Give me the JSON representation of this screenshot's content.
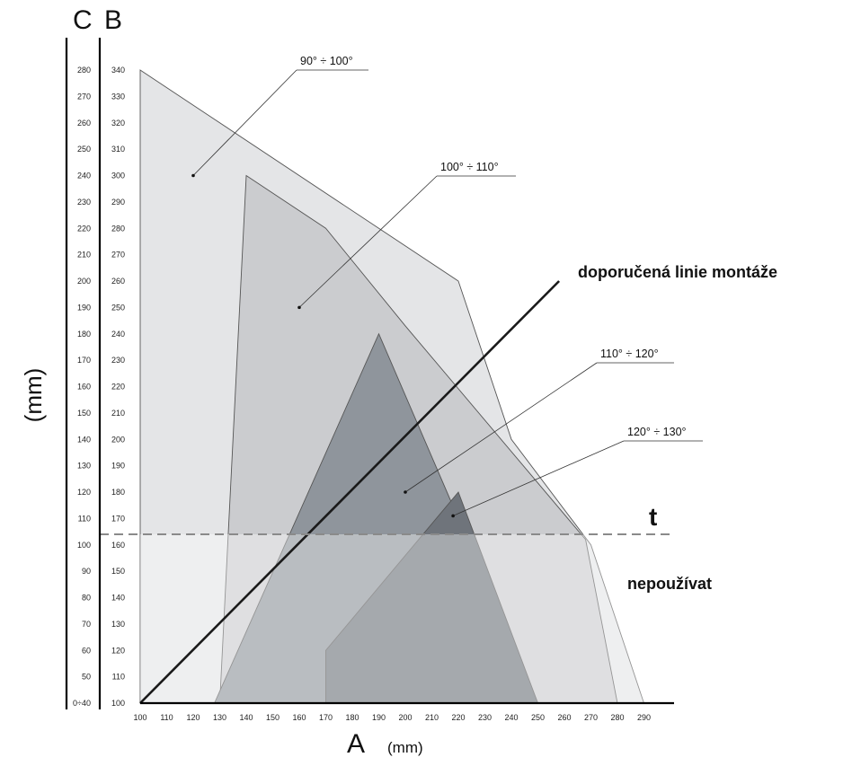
{
  "chart_data": {
    "type": "area",
    "x_axis": {
      "label": "A",
      "unit": "(mm)",
      "ticks": [
        100,
        110,
        120,
        130,
        140,
        150,
        160,
        170,
        180,
        190,
        200,
        210,
        220,
        230,
        240,
        250,
        260,
        270,
        280,
        290
      ],
      "range": [
        100,
        290
      ]
    },
    "y_axis_label": "(mm)",
    "y_axis_B": {
      "label": "B",
      "ticks": [
        "100",
        "110",
        "120",
        "130",
        "140",
        "150",
        "160",
        "170",
        "180",
        "190",
        "200",
        "210",
        "220",
        "230",
        "240",
        "250",
        "260",
        "270",
        "280",
        "290",
        "300",
        "310",
        "320",
        "330",
        "340"
      ],
      "range": [
        100,
        340
      ]
    },
    "y_axis_C": {
      "label": "C",
      "ticks": [
        "0÷40",
        "50",
        "60",
        "70",
        "80",
        "90",
        "100",
        "110",
        "120",
        "130",
        "140",
        "150",
        "160",
        "170",
        "180",
        "190",
        "200",
        "210",
        "220",
        "230",
        "240",
        "250",
        "260",
        "270",
        "280"
      ]
    },
    "series": [
      {
        "name": "90° ÷ 100°",
        "fill": "#e4e5e7",
        "points": [
          [
            100,
            340
          ],
          [
            220,
            260
          ],
          [
            240,
            200
          ],
          [
            270,
            160
          ],
          [
            290,
            100
          ],
          [
            100,
            100
          ]
        ]
      },
      {
        "name": "100° ÷ 110°",
        "fill": "#cbcccf",
        "points": [
          [
            140,
            300
          ],
          [
            170,
            280
          ],
          [
            200,
            243
          ],
          [
            268,
            162
          ],
          [
            280,
            100
          ],
          [
            130,
            100
          ]
        ]
      },
      {
        "name": "110° ÷ 120°",
        "fill": "#8f959c",
        "points": [
          [
            190,
            240
          ],
          [
            250,
            100
          ],
          [
            128,
            100
          ]
        ]
      },
      {
        "name": "120° ÷ 130°",
        "fill": "#6f747b",
        "points": [
          [
            220,
            180
          ],
          [
            250,
            100
          ],
          [
            170,
            100
          ],
          [
            170,
            120
          ]
        ]
      }
    ],
    "annotations": {
      "zone_labels": [
        {
          "text": "90° ÷ 100°",
          "point": [
            120,
            300
          ]
        },
        {
          "text": "100° ÷ 110°",
          "point": [
            160,
            250
          ]
        },
        {
          "text": "110° ÷ 120°",
          "point": [
            200,
            180
          ]
        },
        {
          "text": "120° ÷ 130°",
          "point": [
            218,
            171
          ]
        }
      ],
      "recommended_line": {
        "label": "doporučená linie montáže",
        "from": [
          100,
          100
        ],
        "to": [
          258,
          260
        ]
      },
      "threshold": {
        "label": "t",
        "value": 164
      },
      "below_threshold_label": "nepoužívat",
      "below_threshold_fill": "rgba(255,255,255,0.38)"
    }
  }
}
